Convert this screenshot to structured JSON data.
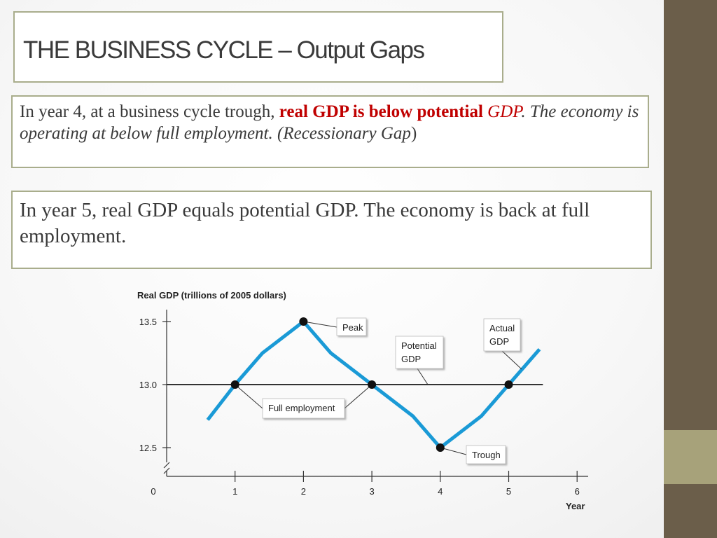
{
  "slide": {
    "title": "THE BUSINESS CYCLE – Output Gaps",
    "box1": {
      "part1": "In year 4, at a business cycle trough, ",
      "part2": "real GDP is below potential",
      "part3": "GDP",
      "part4": ". The economy is operating at below full employment. (Recessionary Gap",
      "part5": ")"
    },
    "box2": {
      "text": "In year 5, real GDP equals potential GDP. The economy is back at full employment."
    },
    "colors": {
      "sidebar_dark": "#6b5e4a",
      "sidebar_accent": "#a7a27a",
      "emphasis_red": "#c00000",
      "actual_gdp_line": "#1a9ad6"
    }
  },
  "chart_data": {
    "type": "line",
    "ylabel": "Real GDP (trillions of 2005 dollars)",
    "xlabel": "Year",
    "x_ticks": [
      "0",
      "1",
      "2",
      "3",
      "4",
      "5",
      "6"
    ],
    "y_ticks": [
      "12.5",
      "13.0",
      "13.5"
    ],
    "xlim": [
      0,
      6
    ],
    "ylim": [
      12.5,
      13.5
    ],
    "series": [
      {
        "name": "Actual GDP",
        "x": [
          0.6,
          1,
          1.4,
          2,
          2.4,
          3,
          3.6,
          4,
          4.6,
          5,
          5.45
        ],
        "y": [
          12.72,
          13.0,
          13.25,
          13.5,
          13.25,
          13.0,
          12.75,
          12.5,
          12.75,
          13.0,
          13.28
        ]
      },
      {
        "name": "Potential GDP",
        "x": [
          0,
          5.5
        ],
        "y": [
          13.0,
          13.0
        ]
      }
    ],
    "points": [
      {
        "x": 1,
        "y": 13.0
      },
      {
        "x": 2,
        "y": 13.5
      },
      {
        "x": 3,
        "y": 13.0
      },
      {
        "x": 4,
        "y": 12.5
      },
      {
        "x": 5,
        "y": 13.0
      }
    ],
    "annotations": {
      "peak": "Peak",
      "full_employment": "Full employment",
      "trough": "Trough",
      "potential_line1": "Potential",
      "potential_line2": "GDP",
      "actual_line1": "Actual",
      "actual_line2": "GDP"
    }
  }
}
